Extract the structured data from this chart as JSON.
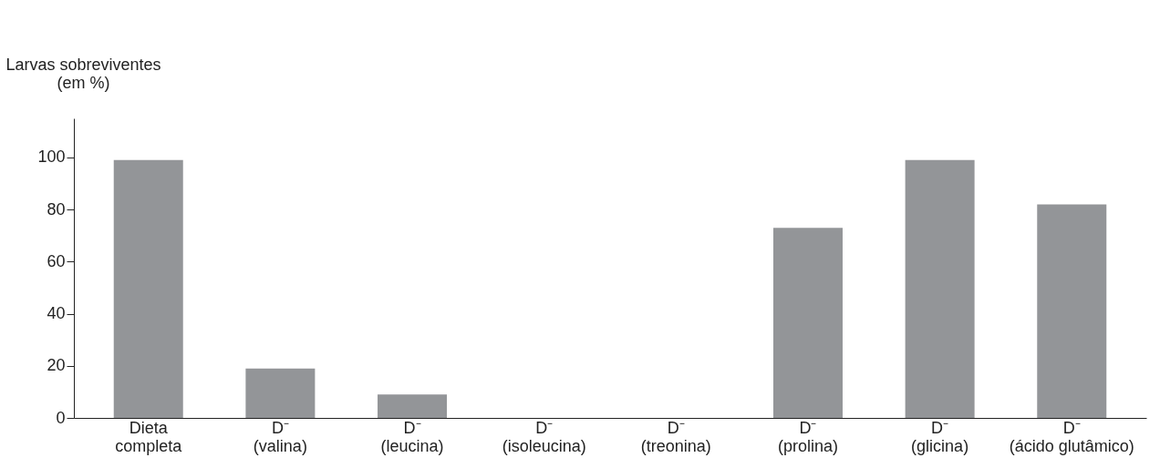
{
  "chart_data": {
    "type": "bar",
    "ylabel": "Larvas sobreviventes\n(em %)",
    "categories": [
      "Dieta\ncompleta",
      "D⁻\n(valina)",
      "D⁻\n(leucina)",
      "D⁻\n(isoleucina)",
      "D⁻\n(treonina)",
      "D⁻\n(prolina)",
      "D⁻\n(glicina)",
      "D⁻\n(ácido glutâmico)"
    ],
    "values": [
      99,
      19,
      9,
      0,
      0,
      73,
      99,
      82
    ],
    "color": "#939598",
    "ylim": [
      0,
      115
    ],
    "yticks": [
      0,
      20,
      40,
      60,
      80,
      100
    ],
    "grid": false
  }
}
